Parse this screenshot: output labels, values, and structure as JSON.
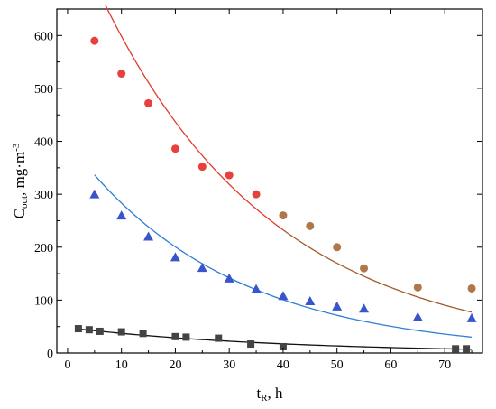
{
  "chart_data": {
    "type": "scatter",
    "xlabel": {
      "main": "t",
      "sub": "R",
      "rest": ", h"
    },
    "ylabel": {
      "main": "C",
      "sub": "out",
      "rest": ", mg·m",
      "sup": "-3"
    },
    "xlim": [
      -2,
      77
    ],
    "ylim": [
      0,
      650
    ],
    "xticks": [
      0,
      10,
      20,
      30,
      40,
      50,
      60,
      70
    ],
    "yticks": [
      0,
      100,
      200,
      300,
      400,
      500,
      600
    ],
    "series": [
      {
        "marker": "circle",
        "color": "#e8403c",
        "points": [
          [
            5,
            590
          ],
          [
            10,
            528
          ],
          [
            15,
            472
          ],
          [
            20,
            386
          ],
          [
            25,
            352
          ],
          [
            30,
            336
          ],
          [
            35,
            300
          ]
        ]
      },
      {
        "marker": "circle",
        "color": "#b0784a",
        "points": [
          [
            40,
            260
          ],
          [
            45,
            240
          ],
          [
            50,
            200
          ],
          [
            55,
            160
          ],
          [
            65,
            124
          ],
          [
            75,
            122
          ]
        ]
      },
      {
        "marker": "triangle",
        "color": "#3a54cc",
        "points": [
          [
            5,
            300
          ],
          [
            10,
            260
          ],
          [
            15,
            220
          ],
          [
            20,
            181
          ],
          [
            25,
            161
          ],
          [
            30,
            141
          ],
          [
            35,
            121
          ],
          [
            40,
            108
          ],
          [
            45,
            98
          ],
          [
            50,
            88
          ],
          [
            55,
            84
          ],
          [
            65,
            68
          ],
          [
            75,
            66
          ]
        ]
      },
      {
        "marker": "square",
        "color": "#444444",
        "points": [
          [
            2,
            46
          ],
          [
            4,
            44
          ],
          [
            6,
            41
          ],
          [
            10,
            40
          ],
          [
            14,
            37
          ],
          [
            20,
            31
          ],
          [
            22,
            30
          ],
          [
            28,
            28
          ],
          [
            34,
            17
          ],
          [
            40,
            12
          ],
          [
            72,
            8
          ],
          [
            74,
            8
          ]
        ]
      }
    ],
    "fits": [
      {
        "color": "#e03a2e",
        "x": [
          7,
          40
        ],
        "a": 820,
        "k": 0.0315
      },
      {
        "color": "#a35a2a",
        "x": [
          40,
          75
        ],
        "a": 820,
        "k": 0.0315
      },
      {
        "color": "#2e7fd6",
        "x": [
          5,
          75
        ],
        "a": 400,
        "k": 0.0345
      },
      {
        "color": "#111111",
        "x": [
          2,
          75
        ],
        "a": 48,
        "k": 0.0255
      }
    ]
  }
}
